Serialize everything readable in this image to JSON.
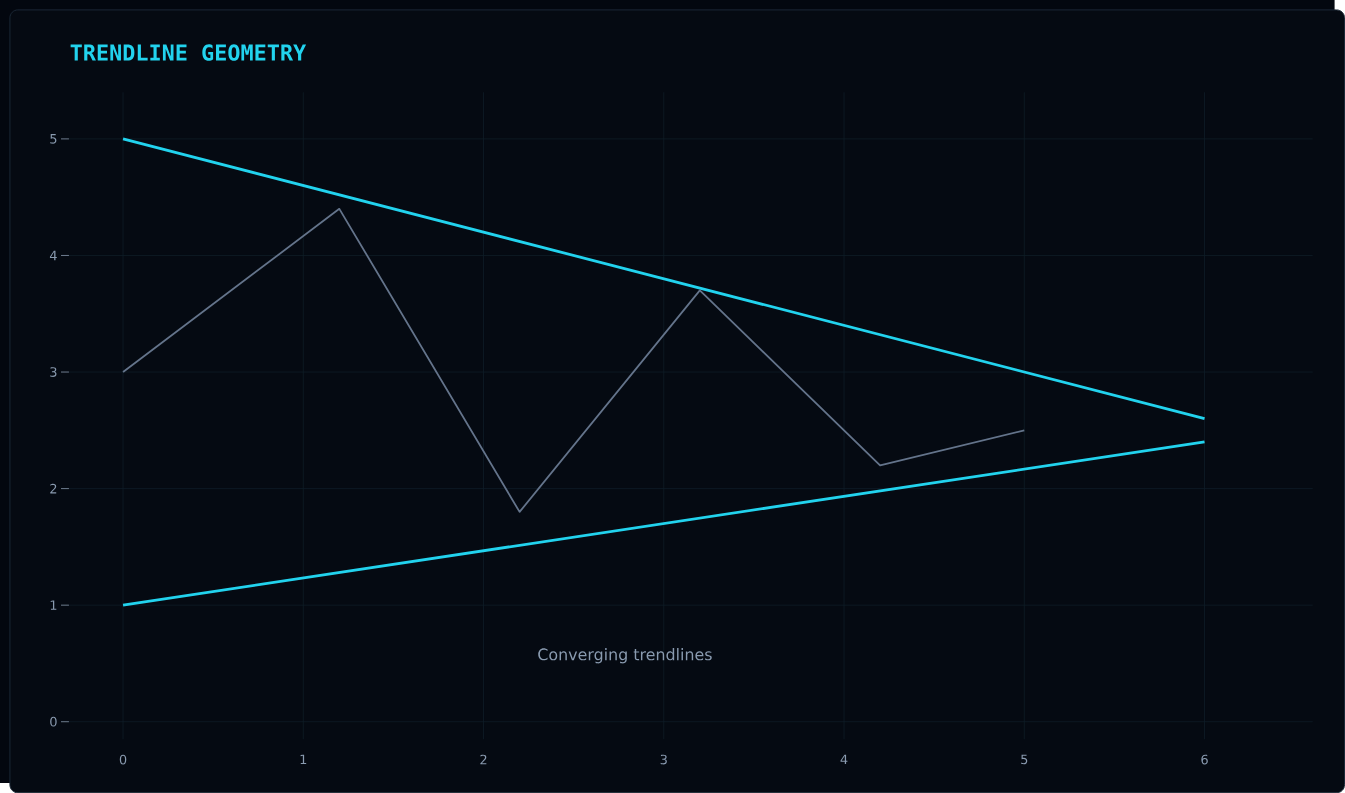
{
  "chart_data": {
    "type": "line",
    "title": "TRENDLINE GEOMETRY",
    "series": [
      {
        "color": "#22d3ee",
        "x": [
          0,
          6
        ],
        "values": [
          5,
          2.6
        ]
      },
      {
        "color": "#22d3ee",
        "x": [
          0,
          6
        ],
        "values": [
          1,
          2.4
        ]
      },
      {
        "color": "#64748b",
        "x": [
          0,
          1.2,
          2.2,
          3.2,
          4.2,
          5
        ],
        "values": [
          3,
          4.4,
          1.8,
          3.7,
          2.2,
          2.5
        ]
      }
    ],
    "xlim": [
      -0.3,
      6.6
    ],
    "ylim": [
      -0.15,
      5.4
    ],
    "xticks": [
      0,
      1,
      2,
      3,
      4,
      5,
      6
    ],
    "yticks": [
      0,
      1,
      2,
      3,
      4,
      5
    ],
    "grid": true,
    "annotations": [
      "Converging trendlines"
    ]
  }
}
